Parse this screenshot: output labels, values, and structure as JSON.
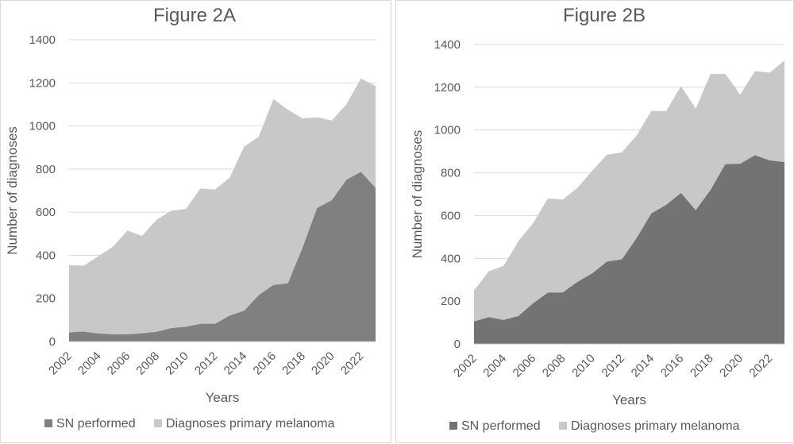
{
  "chart_data": [
    {
      "type": "area",
      "title": "Figure 2A",
      "xlabel": "Years",
      "ylabel": "Number  of diagnoses",
      "ylim": [
        0,
        1400
      ],
      "yticks": [
        0,
        200,
        400,
        600,
        800,
        1000,
        1200,
        1400
      ],
      "xtick_labels": [
        "2002",
        "2004",
        "2006",
        "2008",
        "2010",
        "2012",
        "2014",
        "2016",
        "2018",
        "2020",
        "2022"
      ],
      "x": [
        2002,
        2003,
        2004,
        2005,
        2006,
        2007,
        2008,
        2009,
        2010,
        2011,
        2012,
        2013,
        2014,
        2015,
        2016,
        2017,
        2018,
        2019,
        2020,
        2021,
        2022,
        2023
      ],
      "grid": true,
      "legend": "bottom",
      "series": [
        {
          "name": "SN performed",
          "color": "#808080",
          "values": [
            42,
            46,
            37,
            33,
            33,
            38,
            45,
            62,
            68,
            82,
            82,
            120,
            143,
            215,
            262,
            270,
            435,
            620,
            655,
            750,
            787,
            712
          ]
        },
        {
          "name": "Diagnoses primary melanoma",
          "color": "#c8c8c8",
          "values": [
            355,
            352,
            395,
            440,
            515,
            490,
            565,
            607,
            615,
            710,
            705,
            760,
            905,
            950,
            1125,
            1075,
            1035,
            1040,
            1025,
            1100,
            1220,
            1185
          ]
        }
      ]
    },
    {
      "type": "area",
      "title": "Figure 2B",
      "xlabel": "Years",
      "ylabel": "Number of diagnoses",
      "ylim": [
        0,
        1400
      ],
      "yticks": [
        0,
        200,
        400,
        600,
        800,
        1000,
        1200,
        1400
      ],
      "xtick_labels": [
        "2002",
        "2004",
        "2006",
        "2008",
        "2010",
        "2012",
        "2014",
        "2016",
        "2018",
        "2020",
        "2022"
      ],
      "x": [
        2002,
        2003,
        2004,
        2005,
        2006,
        2007,
        2008,
        2009,
        2010,
        2011,
        2012,
        2013,
        2014,
        2015,
        2016,
        2017,
        2018,
        2019,
        2020,
        2021,
        2022,
        2023
      ],
      "grid": true,
      "legend": "bottom",
      "series": [
        {
          "name": "SN performed",
          "color": "#737373",
          "values": [
            105,
            125,
            112,
            130,
            190,
            240,
            240,
            290,
            330,
            385,
            395,
            495,
            610,
            650,
            705,
            625,
            720,
            840,
            842,
            882,
            858,
            850
          ]
        },
        {
          "name": "Diagnoses primary melanoma",
          "color": "#c8c8c8",
          "values": [
            250,
            340,
            365,
            480,
            565,
            680,
            675,
            730,
            810,
            885,
            895,
            975,
            1090,
            1088,
            1205,
            1100,
            1262,
            1262,
            1165,
            1275,
            1268,
            1325
          ]
        }
      ]
    }
  ]
}
